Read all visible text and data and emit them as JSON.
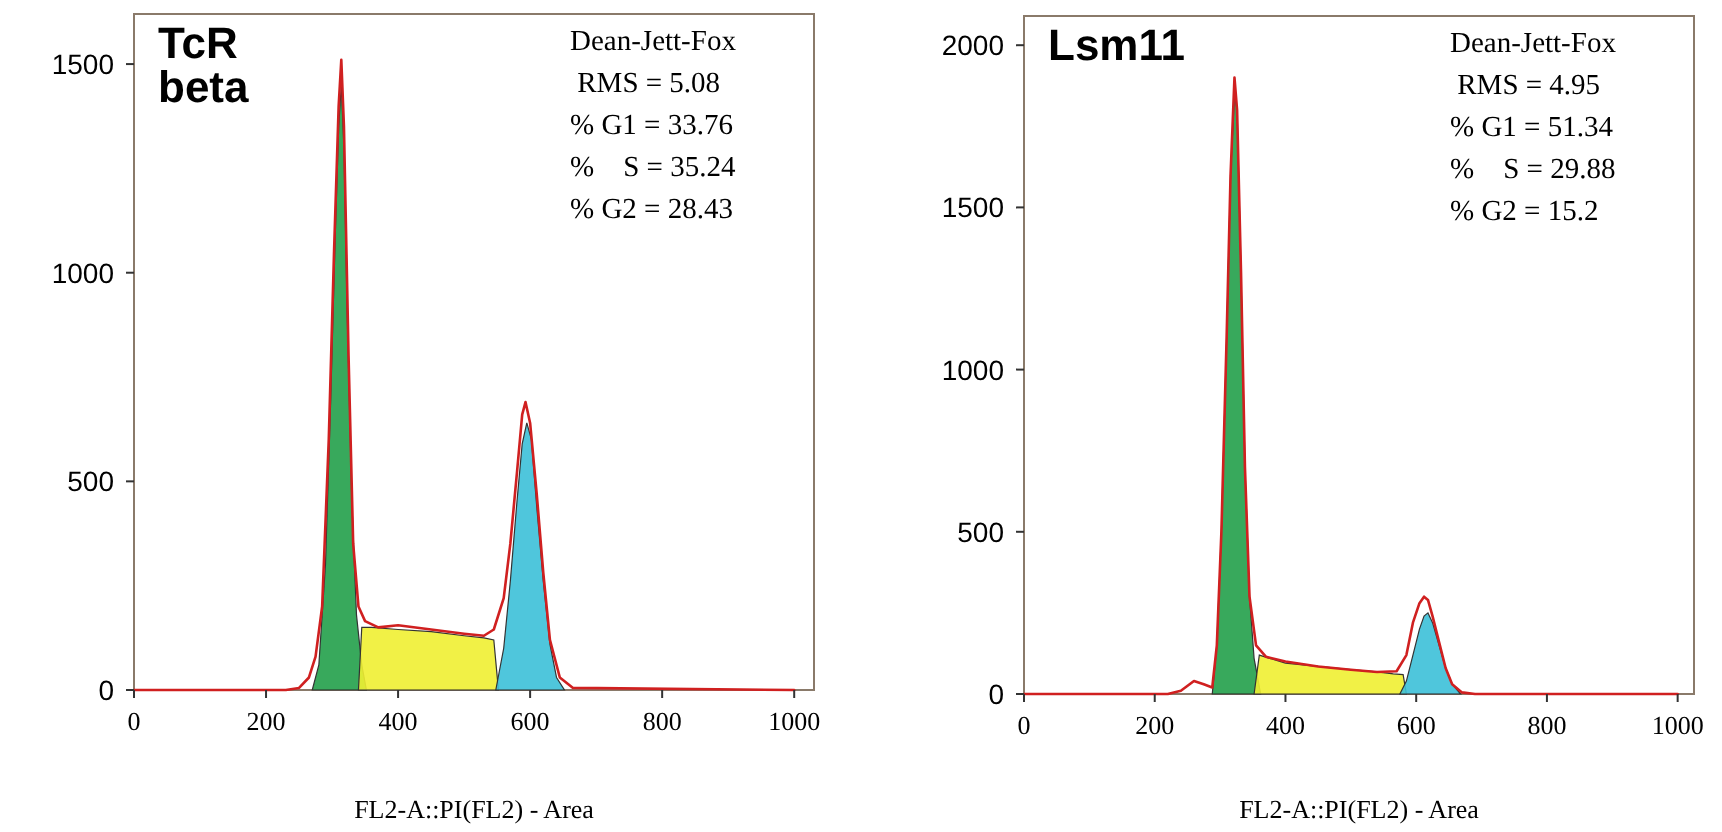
{
  "chart_data": [
    {
      "type": "area",
      "title": "TcR beta",
      "xlabel": "FL2-A::PI(FL2) - Area",
      "xlim": [
        0,
        1030
      ],
      "ylim": [
        0,
        1620
      ],
      "xticks": [
        0,
        200,
        400,
        600,
        800,
        1000
      ],
      "yticks": [
        0,
        500,
        1000,
        1500
      ],
      "annotations": [
        "Dean-Jett-Fox",
        " RMS = 5.08",
        "% G1 = 33.76",
        "%    S = 35.24",
        "% G2 = 28.43"
      ],
      "grid": false,
      "series": [
        {
          "color": "#22a04a",
          "x": [
            270,
            280,
            290,
            298,
            305,
            310,
            314,
            318,
            323,
            330,
            337,
            345,
            352
          ],
          "values": [
            0,
            60,
            300,
            700,
            1100,
            1350,
            1450,
            1300,
            900,
            450,
            180,
            60,
            0
          ]
        },
        {
          "color": "#f0f032",
          "x": [
            340,
            345,
            360,
            400,
            450,
            500,
            530,
            545,
            552
          ],
          "values": [
            0,
            150,
            150,
            145,
            140,
            130,
            125,
            120,
            0
          ]
        },
        {
          "color": "#3cc0d8",
          "x": [
            548,
            560,
            570,
            580,
            588,
            595,
            602,
            610,
            620,
            630,
            640,
            652
          ],
          "values": [
            0,
            100,
            260,
            450,
            590,
            640,
            600,
            440,
            260,
            110,
            30,
            0
          ]
        },
        {
          "type": "line",
          "color": "#d02020",
          "x": [
            0,
            230,
            250,
            265,
            275,
            285,
            295,
            303,
            310,
            314,
            318,
            325,
            332,
            340,
            350,
            370,
            400,
            450,
            500,
            530,
            545,
            560,
            570,
            580,
            588,
            593,
            600,
            610,
            620,
            630,
            645,
            665,
            1000
          ],
          "values": [
            0,
            0,
            5,
            30,
            80,
            200,
            600,
            1050,
            1400,
            1510,
            1350,
            800,
            350,
            200,
            165,
            150,
            155,
            145,
            135,
            130,
            145,
            220,
            350,
            520,
            660,
            690,
            640,
            470,
            280,
            120,
            30,
            5,
            0
          ]
        }
      ]
    },
    {
      "type": "area",
      "title": "Lsm11",
      "xlabel": "FL2-A::PI(FL2) - Area",
      "xlim": [
        0,
        1025
      ],
      "ylim": [
        0,
        2090
      ],
      "xticks": [
        0,
        200,
        400,
        600,
        800,
        1000
      ],
      "yticks": [
        0,
        500,
        1000,
        1500,
        2000
      ],
      "annotations": [
        "Dean-Jett-Fox",
        " RMS = 4.95",
        "% G1 = 51.34",
        "%    S = 29.88",
        "% G2 = 15.2"
      ],
      "grid": false,
      "series": [
        {
          "color": "#22a04a",
          "x": [
            288,
            295,
            302,
            310,
            316,
            322,
            326,
            332,
            338,
            345,
            352,
            362
          ],
          "values": [
            0,
            150,
            500,
            1100,
            1600,
            1850,
            1800,
            1300,
            700,
            300,
            110,
            0
          ]
        },
        {
          "color": "#f0f032",
          "x": [
            352,
            360,
            400,
            450,
            500,
            540,
            565,
            580,
            585
          ],
          "values": [
            0,
            120,
            95,
            85,
            75,
            68,
            62,
            60,
            0
          ]
        },
        {
          "color": "#3cc0d8",
          "x": [
            575,
            585,
            595,
            605,
            612,
            618,
            625,
            635,
            645,
            655,
            668
          ],
          "values": [
            0,
            40,
            120,
            200,
            240,
            250,
            220,
            150,
            80,
            30,
            0
          ]
        },
        {
          "type": "line",
          "color": "#d02020",
          "x": [
            0,
            220,
            240,
            260,
            275,
            288,
            295,
            302,
            310,
            316,
            322,
            326,
            332,
            338,
            345,
            355,
            370,
            400,
            450,
            500,
            540,
            570,
            585,
            595,
            605,
            612,
            618,
            625,
            635,
            645,
            655,
            670,
            690,
            1000
          ],
          "values": [
            0,
            0,
            10,
            40,
            30,
            20,
            150,
            500,
            1100,
            1600,
            1900,
            1800,
            1300,
            700,
            300,
            150,
            115,
            100,
            85,
            75,
            68,
            70,
            120,
            220,
            280,
            300,
            290,
            240,
            160,
            80,
            30,
            5,
            0,
            0
          ]
        }
      ]
    }
  ]
}
